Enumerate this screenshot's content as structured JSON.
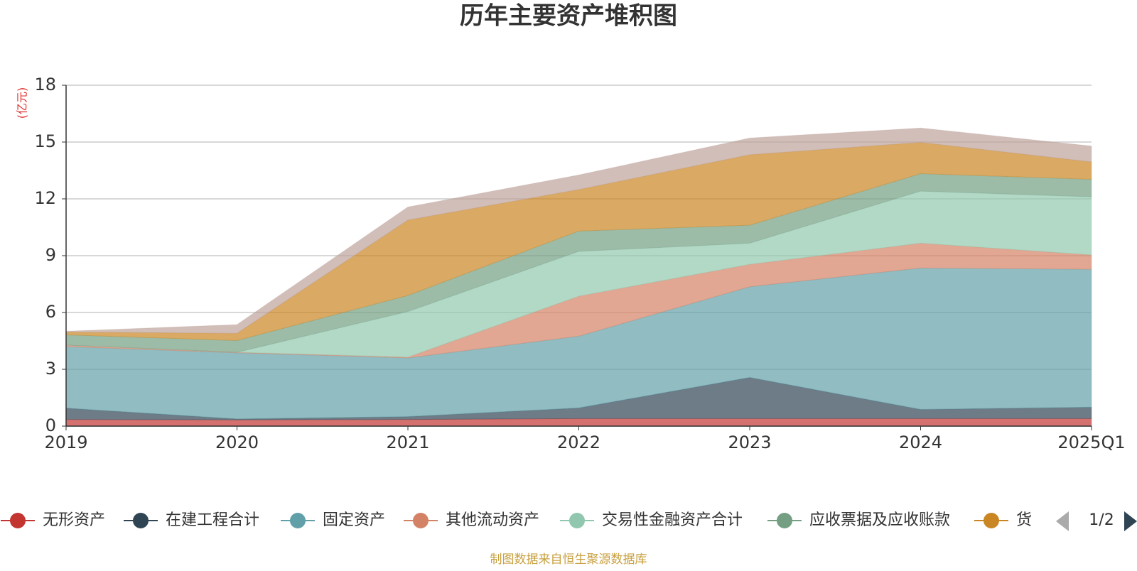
{
  "chart_data": {
    "type": "stacked_area",
    "title": "历年主要资产堆积图",
    "y_label": "(亿元)",
    "categories": [
      "2019",
      "2020",
      "2021",
      "2022",
      "2023",
      "2024",
      "2025Q1"
    ],
    "ylim": [
      0,
      18
    ],
    "yticks": [
      0,
      3,
      6,
      9,
      12,
      15,
      18
    ],
    "grid": true,
    "series": [
      {
        "name": "无形资产",
        "color": "#c23531",
        "values": [
          0.35,
          0.33,
          0.35,
          0.4,
          0.4,
          0.4,
          0.4
        ]
      },
      {
        "name": "在建工程合计",
        "color": "#2f4554",
        "values": [
          0.6,
          0.05,
          0.15,
          0.56,
          2.17,
          0.48,
          0.6
        ]
      },
      {
        "name": "固定资产",
        "color": "#61a0a8",
        "values": [
          3.25,
          3.49,
          3.1,
          3.79,
          4.79,
          7.47,
          7.28
        ]
      },
      {
        "name": "其他流动资产",
        "color": "#d48265",
        "values": [
          0.08,
          0.03,
          0.04,
          2.11,
          1.18,
          1.31,
          0.76
        ]
      },
      {
        "name": "交易性金融资产合计",
        "color": "#91c7ae",
        "values": [
          0,
          0,
          2.41,
          2.37,
          1.12,
          2.75,
          3.07
        ]
      },
      {
        "name": "应收票据及应收账款",
        "color": "#749f83",
        "values": [
          0.54,
          0.62,
          0.85,
          1.07,
          0.95,
          0.92,
          0.92
        ]
      },
      {
        "name": "货",
        "color": "#ca8622",
        "values": [
          0.15,
          0.38,
          3.98,
          2.19,
          3.72,
          1.65,
          0.92
        ]
      },
      {
        "name": null,
        "color": "#bda29a",
        "values": [
          0.04,
          0.46,
          0.69,
          0.77,
          0.88,
          0.76,
          0.84
        ]
      }
    ],
    "legend_page": "1/2",
    "source": "制图数据来自恒生聚源数据库"
  }
}
